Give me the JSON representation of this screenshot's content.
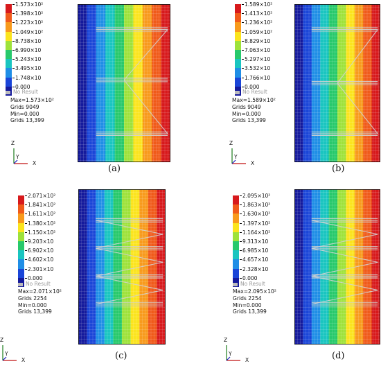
{
  "panels": [
    {
      "caption": "(a)",
      "legend": [
        "1.573×10²",
        "1.398×10²",
        "1.223×10²",
        "1.049×10²",
        "8.738×10",
        "6.990×10",
        "5.243×10",
        "3.495×10",
        "1.748×10",
        "0.000"
      ],
      "no_result": "No Result",
      "stats": [
        "Max=1.573×10²",
        "Grids 9049",
        "Min=0.000",
        "Grids 13,399"
      ],
      "axes": {
        "z": "Z",
        "y": "Y",
        "x": "X"
      }
    },
    {
      "caption": "(b)",
      "legend": [
        "1.589×10²",
        "1.413×10²",
        "1.236×10²",
        "1.059×10²",
        "8.829×10",
        "7.063×10",
        "5.297×10",
        "3.532×10",
        "1.766×10",
        "0.000"
      ],
      "no_result": "No Result",
      "stats": [
        "Max=1.589×10²",
        "Grids 9049",
        "Min=0.000",
        "Grids 13,399"
      ],
      "axes": {
        "z": "Z",
        "y": "Y",
        "x": "X"
      }
    },
    {
      "caption": "(c)",
      "legend": [
        "2.071×10²",
        "1.841×10²",
        "1.611×10²",
        "1.380×10²",
        "1.150×10²",
        "9.203×10",
        "6.902×10",
        "4.602×10",
        "2.301×10",
        "0.000"
      ],
      "no_result": "No Result",
      "stats": [
        "Max=2.071×10²",
        "Grids 2254",
        "Min=0.000",
        "Grids 13,399"
      ],
      "axes": {
        "z": "Z",
        "y": "Y",
        "x": "X"
      }
    },
    {
      "caption": "(d)",
      "legend": [
        "2.095×10²",
        "1.863×10²",
        "1.630×10²",
        "1.397×10²",
        "1.164×10²",
        "9.313×10",
        "6.985×10",
        "4.657×10",
        "2.328×10",
        "0.000"
      ],
      "no_result": "No Result",
      "stats": [
        "Max=2.095×10²",
        "Grids 2254",
        "Min=0.000",
        "Grids 13,399"
      ],
      "axes": {
        "z": "Z",
        "y": "Y",
        "x": "X"
      }
    }
  ],
  "colors": {
    "contour_scale": [
      "#d7191c",
      "#f05a1a",
      "#f89a1c",
      "#fbe41d",
      "#9ee23a",
      "#27c96b",
      "#19c5c0",
      "#1f8ee6",
      "#1a45d8",
      "#151a9c"
    ],
    "no_result": "#bbbbbb"
  },
  "icons": {
    "truss": "truss-pattern",
    "mesh": "hex-mesh"
  }
}
